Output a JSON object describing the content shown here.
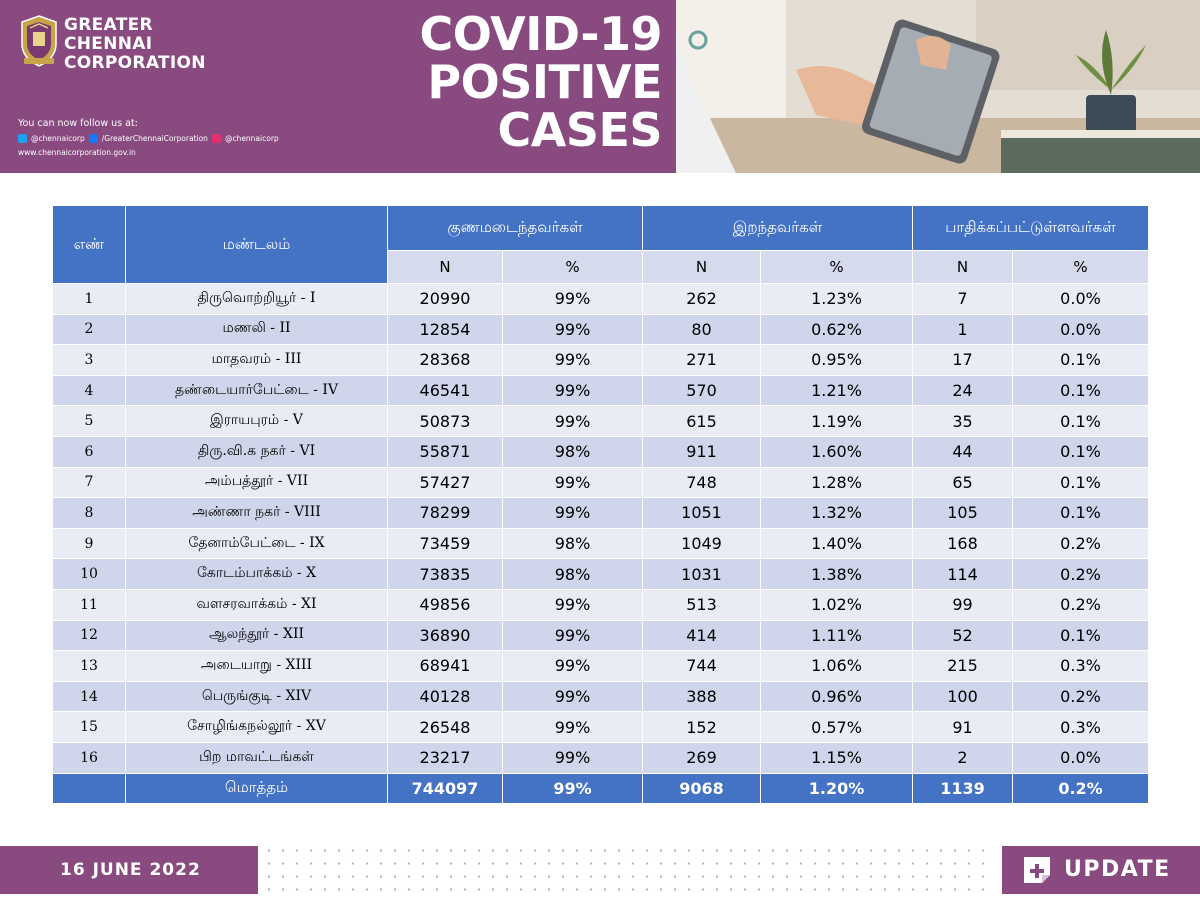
{
  "header": {
    "org_name": [
      "GREATER",
      "CHENNAI",
      "CORPORATION"
    ],
    "follow_text": "You can now follow us at:",
    "social": {
      "twitter": "@chennaicorp",
      "facebook": "/GreaterChennaiCorporation",
      "instagram": "@chennaicorp"
    },
    "website": "www.chennaicorporation.gov.in",
    "title_lines": [
      "COVID-19",
      "POSITIVE",
      "CASES"
    ]
  },
  "table": {
    "col_no": "எண்",
    "col_zone": "மண்டலம்",
    "groups": [
      "குணமடைந்தவர்கள்",
      "இறந்தவர்கள்",
      "பாதிக்கப்பட்டுள்ளவர்கள்"
    ],
    "sub": [
      "N",
      "%",
      "N",
      "%",
      "N",
      "%"
    ],
    "rows": [
      {
        "no": "1",
        "zone": "திருவொற்றியூர் - I",
        "rec_n": "20990",
        "rec_p": "99%",
        "dec_n": "262",
        "dec_p": "1.23%",
        "act_n": "7",
        "act_p": "0.0%"
      },
      {
        "no": "2",
        "zone": "மணலி - II",
        "rec_n": "12854",
        "rec_p": "99%",
        "dec_n": "80",
        "dec_p": "0.62%",
        "act_n": "1",
        "act_p": "0.0%"
      },
      {
        "no": "3",
        "zone": "மாதவரம் - III",
        "rec_n": "28368",
        "rec_p": "99%",
        "dec_n": "271",
        "dec_p": "0.95%",
        "act_n": "17",
        "act_p": "0.1%"
      },
      {
        "no": "4",
        "zone": "தண்டையார்பேட்டை - IV",
        "rec_n": "46541",
        "rec_p": "99%",
        "dec_n": "570",
        "dec_p": "1.21%",
        "act_n": "24",
        "act_p": "0.1%"
      },
      {
        "no": "5",
        "zone": "இராயபுரம் - V",
        "rec_n": "50873",
        "rec_p": "99%",
        "dec_n": "615",
        "dec_p": "1.19%",
        "act_n": "35",
        "act_p": "0.1%"
      },
      {
        "no": "6",
        "zone": "திரு.வி.க நகர் - VI",
        "rec_n": "55871",
        "rec_p": "98%",
        "dec_n": "911",
        "dec_p": "1.60%",
        "act_n": "44",
        "act_p": "0.1%"
      },
      {
        "no": "7",
        "zone": "அம்பத்தூர் - VII",
        "rec_n": "57427",
        "rec_p": "99%",
        "dec_n": "748",
        "dec_p": "1.28%",
        "act_n": "65",
        "act_p": "0.1%"
      },
      {
        "no": "8",
        "zone": "அண்ணா நகர் - VIII",
        "rec_n": "78299",
        "rec_p": "99%",
        "dec_n": "1051",
        "dec_p": "1.32%",
        "act_n": "105",
        "act_p": "0.1%"
      },
      {
        "no": "9",
        "zone": "தேனாம்பேட்டை - IX",
        "rec_n": "73459",
        "rec_p": "98%",
        "dec_n": "1049",
        "dec_p": "1.40%",
        "act_n": "168",
        "act_p": "0.2%"
      },
      {
        "no": "10",
        "zone": "கோடம்பாக்கம் - X",
        "rec_n": "73835",
        "rec_p": "98%",
        "dec_n": "1031",
        "dec_p": "1.38%",
        "act_n": "114",
        "act_p": "0.2%"
      },
      {
        "no": "11",
        "zone": "வளசரவாக்கம் - XI",
        "rec_n": "49856",
        "rec_p": "99%",
        "dec_n": "513",
        "dec_p": "1.02%",
        "act_n": "99",
        "act_p": "0.2%"
      },
      {
        "no": "12",
        "zone": "ஆலந்தூர் - XII",
        "rec_n": "36890",
        "rec_p": "99%",
        "dec_n": "414",
        "dec_p": "1.11%",
        "act_n": "52",
        "act_p": "0.1%"
      },
      {
        "no": "13",
        "zone": "அடையாறு - XIII",
        "rec_n": "68941",
        "rec_p": "99%",
        "dec_n": "744",
        "dec_p": "1.06%",
        "act_n": "215",
        "act_p": "0.3%"
      },
      {
        "no": "14",
        "zone": "பெருங்குடி - XIV",
        "rec_n": "40128",
        "rec_p": "99%",
        "dec_n": "388",
        "dec_p": "0.96%",
        "act_n": "100",
        "act_p": "0.2%"
      },
      {
        "no": "15",
        "zone": "சோழிங்கநல்லூர் - XV",
        "rec_n": "26548",
        "rec_p": "99%",
        "dec_n": "152",
        "dec_p": "0.57%",
        "act_n": "91",
        "act_p": "0.3%"
      },
      {
        "no": "16",
        "zone": "பிற மாவட்டங்கள்",
        "rec_n": "23217",
        "rec_p": "99%",
        "dec_n": "269",
        "dec_p": "1.15%",
        "act_n": "2",
        "act_p": "0.0%"
      }
    ],
    "total": {
      "label": "மொத்தம்",
      "rec_n": "744097",
      "rec_p": "99%",
      "dec_n": "9068",
      "dec_p": "1.20%",
      "act_n": "1139",
      "act_p": "0.2%"
    }
  },
  "footer": {
    "date": "16 JUNE 2022",
    "update_label": "UPDATE"
  },
  "colors": {
    "brand_purple": "#884A7F",
    "table_header_blue": "#4472C4",
    "row_light": "#E9EBF5",
    "row_dark": "#CFD5EA"
  }
}
